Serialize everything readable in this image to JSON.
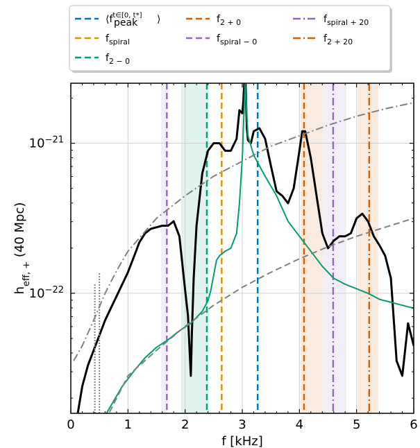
{
  "chart_data": {
    "type": "line",
    "xlabel": "f [kHz]",
    "ylabel": "h_eff,+ (40 Mpc)",
    "xlim": [
      0,
      6
    ],
    "ylim_log10": [
      -22.8,
      -20.6
    ],
    "y_scale": "log",
    "grid": true,
    "x_ticks": [
      0,
      1,
      2,
      3,
      4,
      5,
      6
    ],
    "y_ticks": [
      {
        "label_base": "10",
        "label_exp": "−21",
        "value_log10": -21
      },
      {
        "label_base": "10",
        "label_exp": "−22",
        "value_log10": -22
      }
    ],
    "legend": {
      "placement": "top (above axes)",
      "entries": [
        {
          "label": "⟨f_peak^{t∈[0,t*]}⟩",
          "color": "#0173b2",
          "style": "dashed"
        },
        {
          "label": "f_{2+0}",
          "color": "#d55e00",
          "style": "dashed"
        },
        {
          "label": "f_{spiral+20}",
          "color": "#9467bd",
          "style": "dashdot"
        },
        {
          "label": "f_spiral",
          "color": "#de8f05",
          "style": "dashed"
        },
        {
          "label": "f_{spiral−0}",
          "color": "#9467bd",
          "style": "dashed"
        },
        {
          "label": "f_{2+20}",
          "color": "#d55e00",
          "style": "dashdot"
        },
        {
          "label": "f_{2−0}",
          "color": "#029e73",
          "style": "dashed"
        }
      ]
    },
    "legend_text": {
      "peak_main": "⟨f",
      "peak_sub": "peak",
      "peak_sup": "t∈[0, t*]",
      "peak_close": "⟩",
      "f": "f",
      "sub_2p0": "2 + 0",
      "sub_spm20": "spiral + 20",
      "sub_spiral": "spiral",
      "sub_spm0": "spiral − 0",
      "sub_2p20": "2 + 20",
      "sub_2m0": "2 − 0"
    },
    "vertical_lines": [
      {
        "name": "f_peak",
        "x": 3.27,
        "color": "#0173b2",
        "style": "dashed",
        "band": null
      },
      {
        "name": "f_spiral",
        "x": 2.64,
        "color": "#de8f05",
        "style": "dashed",
        "band": null
      },
      {
        "name": "f_2-0",
        "x": 2.38,
        "color": "#029e73",
        "style": "dashed",
        "band": [
          1.93,
          2.42
        ]
      },
      {
        "name": "f_2+0",
        "x": 4.08,
        "color": "#d55e00",
        "style": "dashed",
        "band": [
          4.02,
          4.42
        ]
      },
      {
        "name": "f_spiral-0",
        "x": 1.68,
        "color": "#9467bd",
        "style": "dashed",
        "band": [
          1.58,
          1.7
        ]
      },
      {
        "name": "f_spiral+20",
        "x": 4.59,
        "color": "#9467bd",
        "style": "dashdot",
        "band": [
          4.42,
          4.82
        ]
      },
      {
        "name": "f_2+20",
        "x": 5.22,
        "color": "#d55e00",
        "style": "dashdot",
        "band": [
          5.02,
          5.38
        ]
      }
    ],
    "series": [
      {
        "color": "#000000",
        "style": "solid",
        "x": [
          0.1,
          0.2,
          0.3,
          0.4,
          0.5,
          0.6,
          0.7,
          0.8,
          0.9,
          1.0,
          1.1,
          1.2,
          1.3,
          1.4,
          1.5,
          1.6,
          1.7,
          1.8,
          1.9,
          2.0,
          2.05,
          2.08,
          2.1,
          2.12,
          2.15,
          2.2,
          2.3,
          2.4,
          2.5,
          2.6,
          2.7,
          2.8,
          2.9,
          2.95,
          3.0,
          3.02,
          3.05,
          3.08,
          3.1,
          3.15,
          3.2,
          3.3,
          3.4,
          3.5,
          3.6,
          3.7,
          3.8,
          3.9,
          4.0,
          4.05,
          4.1,
          4.2,
          4.3,
          4.4,
          4.5,
          4.6,
          4.7,
          4.8,
          4.9,
          5.0,
          5.1,
          5.2,
          5.3,
          5.4,
          5.5,
          5.6,
          5.7,
          5.8,
          5.9,
          6.0
        ],
        "y_log10": [
          -22.85,
          -22.62,
          -22.48,
          -22.38,
          -22.28,
          -22.18,
          -22.1,
          -22.02,
          -21.94,
          -21.86,
          -21.76,
          -21.66,
          -21.6,
          -21.57,
          -21.56,
          -21.55,
          -21.55,
          -21.52,
          -21.62,
          -21.98,
          -22.15,
          -22.4,
          -22.55,
          -22.25,
          -21.9,
          -21.55,
          -21.2,
          -21.05,
          -21.0,
          -21.0,
          -21.05,
          -21.05,
          -20.97,
          -20.78,
          -20.8,
          -20.72,
          -20.5,
          -20.9,
          -20.98,
          -21.0,
          -20.92,
          -20.9,
          -20.97,
          -21.15,
          -21.32,
          -21.35,
          -21.4,
          -21.3,
          -21.05,
          -20.92,
          -20.92,
          -21.1,
          -21.35,
          -21.6,
          -21.7,
          -21.65,
          -21.62,
          -21.62,
          -21.6,
          -21.5,
          -21.47,
          -21.52,
          -21.62,
          -21.68,
          -21.75,
          -21.9,
          -22.45,
          -22.55,
          -22.2,
          -22.35
        ]
      },
      {
        "color": "#029e73",
        "style": "solid",
        "x": [
          0.55,
          0.7,
          0.9,
          1.1,
          1.3,
          1.5,
          1.7,
          1.9,
          2.1,
          2.3,
          2.4,
          2.45,
          2.5,
          2.55,
          2.6,
          2.7,
          2.8,
          2.9,
          2.95,
          3.0,
          3.02,
          3.05,
          3.08,
          3.1,
          3.2,
          3.4,
          3.6,
          3.8,
          4.0,
          4.2,
          4.4,
          4.6,
          4.8,
          5.0,
          5.2,
          5.4,
          5.6,
          5.8,
          6.0
        ],
        "y_log10": [
          -22.85,
          -22.75,
          -22.62,
          -22.52,
          -22.43,
          -22.36,
          -22.31,
          -22.25,
          -22.2,
          -22.12,
          -22.05,
          -21.98,
          -21.88,
          -21.78,
          -21.75,
          -21.72,
          -21.7,
          -21.6,
          -21.4,
          -21.1,
          -20.9,
          -20.6,
          -20.82,
          -20.95,
          -21.08,
          -21.22,
          -21.35,
          -21.52,
          -21.62,
          -21.72,
          -21.82,
          -21.9,
          -21.94,
          -21.97,
          -22.0,
          -22.04,
          -22.06,
          -22.08,
          -22.1
        ]
      },
      {
        "color": "#808080",
        "style": "dashdot",
        "x": [
          0.05,
          0.2,
          0.4,
          0.6,
          0.8,
          1.0,
          1.5,
          2.0,
          2.5,
          3.0,
          3.5,
          4.0,
          4.5,
          5.0,
          5.5,
          6.0
        ],
        "y_log10": [
          -22.45,
          -22.35,
          -22.18,
          -22.0,
          -21.85,
          -21.72,
          -21.5,
          -21.35,
          -21.22,
          -21.12,
          -21.02,
          -20.95,
          -20.88,
          -20.82,
          -20.77,
          -20.73
        ]
      },
      {
        "color": "#808080",
        "style": "dashed",
        "x": [
          0.6,
          1.0,
          1.5,
          2.0,
          2.5,
          3.0,
          3.5,
          4.0,
          4.5,
          5.0,
          5.5,
          6.0
        ],
        "y_log10": [
          -22.85,
          -22.55,
          -22.38,
          -22.22,
          -22.08,
          -21.96,
          -21.86,
          -21.77,
          -21.69,
          -21.62,
          -21.56,
          -21.5
        ]
      },
      {
        "color": "#808080",
        "style": "dotted",
        "x": [
          0.42,
          0.42
        ],
        "y_log10": [
          -22.8,
          -21.94
        ]
      },
      {
        "color": "#808080",
        "style": "dotted",
        "x": [
          0.5,
          0.5
        ],
        "y_log10": [
          -22.8,
          -21.86
        ]
      }
    ]
  }
}
